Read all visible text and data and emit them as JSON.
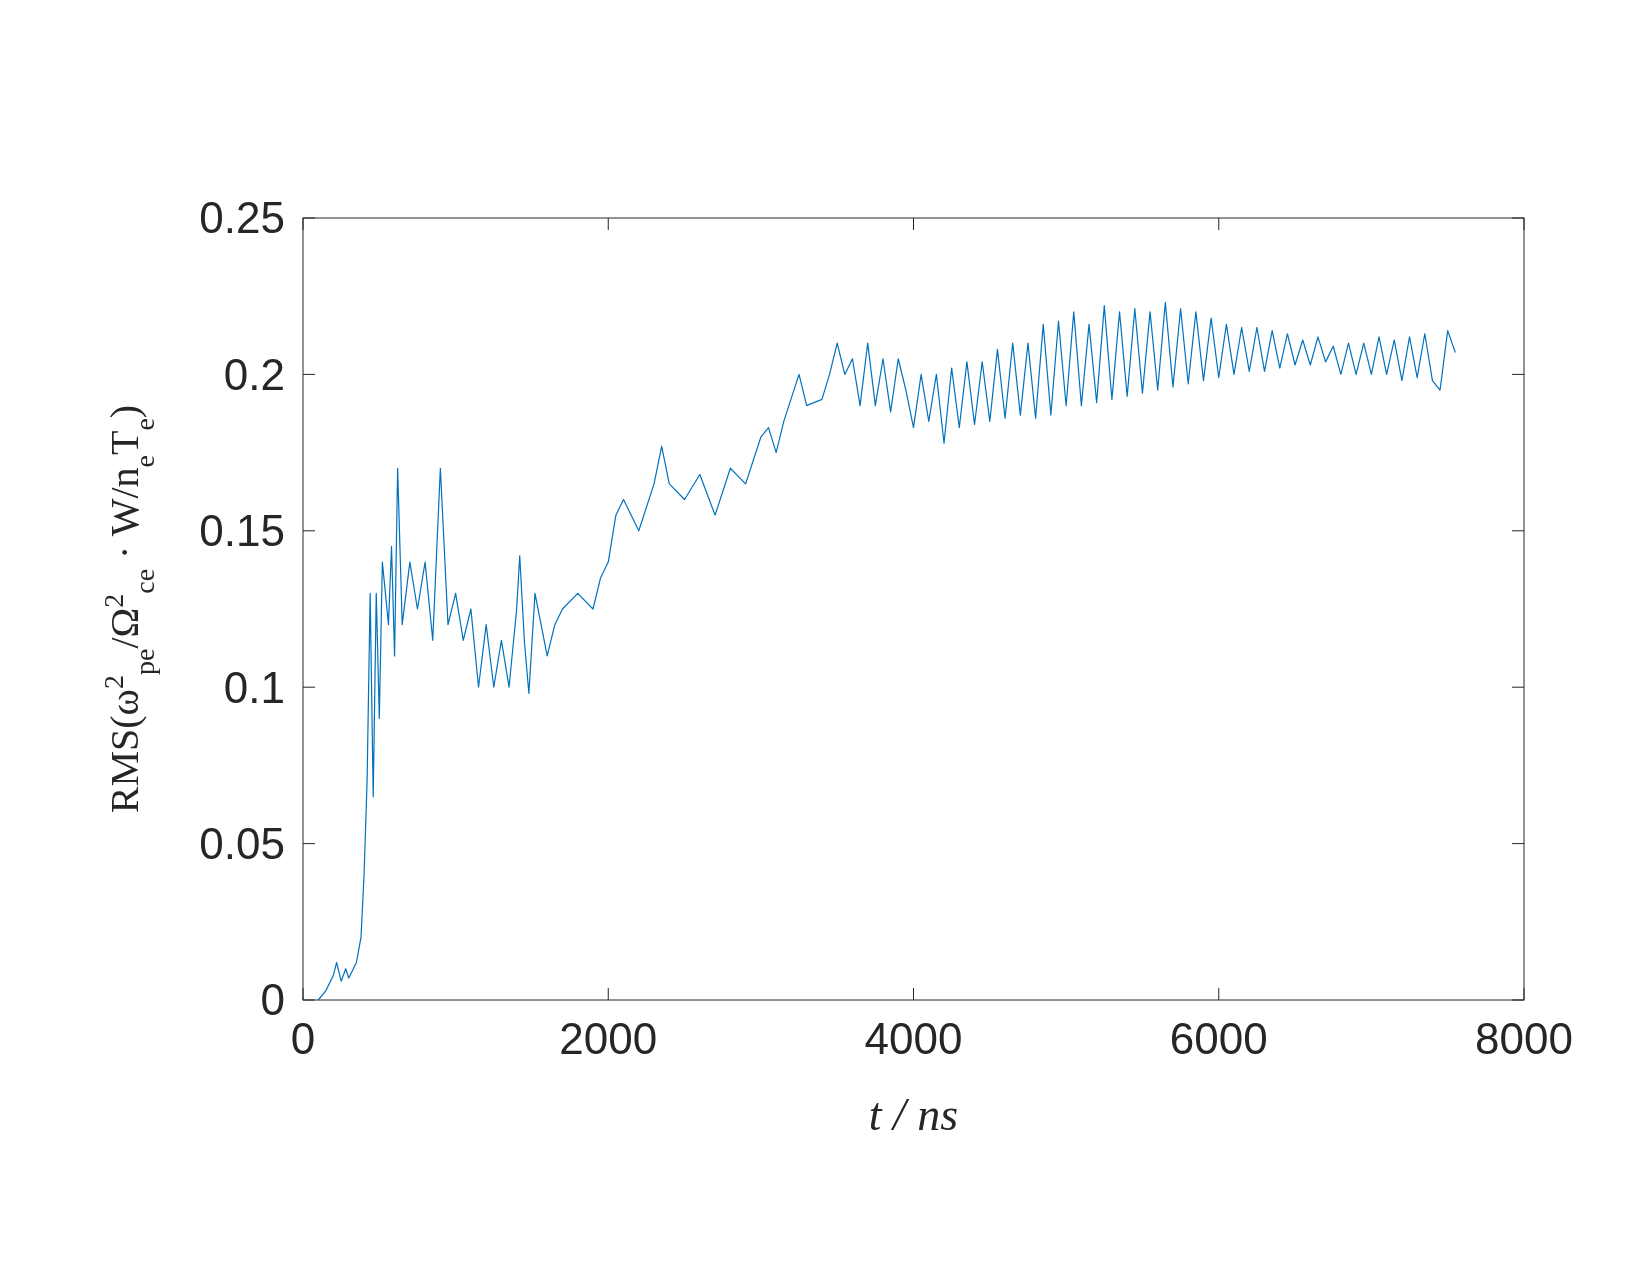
{
  "chart_data": {
    "type": "line",
    "xlabel": "t / ns",
    "ylabel": "RMS(ω$^{2}$$_{pe}$/Ω$^{2}$$_{ce}$ · W/n$_{e}$T$_{e}$)",
    "xlim": [
      0,
      8000
    ],
    "xticks": [
      0,
      2000,
      4000,
      6000,
      8000
    ],
    "ylim": [
      0,
      0.25
    ],
    "yticks": [
      0,
      0.05,
      0.1,
      0.15,
      0.2,
      0.25
    ],
    "grid": false,
    "series": [
      {
        "color": "#0072bd",
        "x": [
          100,
          150,
          200,
          220,
          250,
          280,
          300,
          330,
          350,
          380,
          400,
          420,
          440,
          460,
          480,
          500,
          520,
          560,
          580,
          600,
          620,
          650,
          700,
          750,
          800,
          850,
          900,
          950,
          1000,
          1050,
          1100,
          1150,
          1200,
          1250,
          1300,
          1350,
          1400,
          1420,
          1450,
          1480,
          1520,
          1600,
          1650,
          1700,
          1800,
          1900,
          1950,
          2000,
          2050,
          2100,
          2200,
          2300,
          2350,
          2400,
          2500,
          2600,
          2700,
          2800,
          2900,
          3000,
          3050,
          3100,
          3150,
          3250,
          3300,
          3400,
          3450,
          3500,
          3550,
          3600,
          3650,
          3700,
          3750,
          3800,
          3850,
          3900,
          3950,
          4000,
          4050,
          4100,
          4150,
          4200,
          4250,
          4300,
          4350,
          4400,
          4450,
          4500,
          4550,
          4600,
          4650,
          4700,
          4750,
          4800,
          4850,
          4900,
          4950,
          5000,
          5050,
          5100,
          5150,
          5200,
          5250,
          5300,
          5350,
          5400,
          5450,
          5500,
          5550,
          5600,
          5650,
          5700,
          5750,
          5800,
          5850,
          5900,
          5950,
          6000,
          6050,
          6100,
          6150,
          6200,
          6250,
          6300,
          6350,
          6400,
          6450,
          6500,
          6550,
          6600,
          6650,
          6700,
          6750,
          6800,
          6850,
          6900,
          6950,
          7000,
          7050,
          7100,
          7150,
          7200,
          7250,
          7300,
          7350,
          7400,
          7450,
          7500,
          7550
        ],
        "values": [
          0,
          0.003,
          0.008,
          0.012,
          0.006,
          0.01,
          0.007,
          0.01,
          0.012,
          0.02,
          0.04,
          0.07,
          0.13,
          0.065,
          0.13,
          0.09,
          0.14,
          0.12,
          0.145,
          0.11,
          0.17,
          0.12,
          0.14,
          0.125,
          0.14,
          0.115,
          0.17,
          0.12,
          0.13,
          0.115,
          0.125,
          0.1,
          0.12,
          0.1,
          0.115,
          0.1,
          0.125,
          0.142,
          0.115,
          0.098,
          0.13,
          0.11,
          0.12,
          0.125,
          0.13,
          0.125,
          0.135,
          0.14,
          0.155,
          0.16,
          0.15,
          0.165,
          0.177,
          0.165,
          0.16,
          0.168,
          0.155,
          0.17,
          0.165,
          0.18,
          0.183,
          0.175,
          0.185,
          0.2,
          0.19,
          0.192,
          0.2,
          0.21,
          0.2,
          0.205,
          0.19,
          0.21,
          0.19,
          0.205,
          0.188,
          0.205,
          0.195,
          0.183,
          0.2,
          0.185,
          0.2,
          0.178,
          0.202,
          0.183,
          0.204,
          0.184,
          0.204,
          0.185,
          0.208,
          0.186,
          0.21,
          0.187,
          0.21,
          0.186,
          0.216,
          0.187,
          0.217,
          0.19,
          0.22,
          0.19,
          0.216,
          0.191,
          0.222,
          0.192,
          0.22,
          0.193,
          0.221,
          0.194,
          0.22,
          0.195,
          0.223,
          0.196,
          0.221,
          0.197,
          0.22,
          0.198,
          0.218,
          0.199,
          0.216,
          0.2,
          0.215,
          0.201,
          0.215,
          0.201,
          0.214,
          0.202,
          0.213,
          0.203,
          0.211,
          0.203,
          0.212,
          0.204,
          0.209,
          0.2,
          0.21,
          0.2,
          0.21,
          0.2,
          0.212,
          0.2,
          0.211,
          0.198,
          0.212,
          0.199,
          0.213,
          0.198,
          0.195,
          0.214,
          0.207
        ]
      }
    ]
  }
}
